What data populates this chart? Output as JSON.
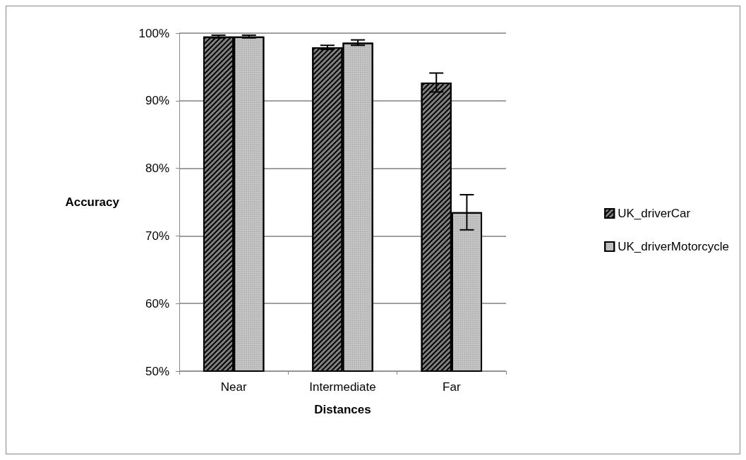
{
  "chart_data": {
    "type": "bar",
    "xlabel": "Distances",
    "ylabel": "Accuracy",
    "categories": [
      "Near",
      "Intermediate",
      "Far"
    ],
    "series": [
      {
        "name": "UK_driverCar",
        "color": "#808080",
        "values": [
          99.5,
          97.9,
          92.7
        ],
        "errors": [
          0.2,
          0.3,
          1.4
        ]
      },
      {
        "name": "UK_driverMotorcycle",
        "color": "#c8c8c8",
        "values": [
          99.5,
          98.6,
          73.5
        ],
        "errors": [
          0.2,
          0.4,
          2.6
        ]
      }
    ],
    "ylim": [
      50,
      100
    ],
    "yticks": [
      {
        "value": 50,
        "label": "50%"
      },
      {
        "value": 60,
        "label": "60%"
      },
      {
        "value": 70,
        "label": "70%"
      },
      {
        "value": 80,
        "label": "80%"
      },
      {
        "value": 90,
        "label": "90%"
      },
      {
        "value": 100,
        "label": "100%"
      }
    ],
    "grid": "y",
    "legend": "right"
  }
}
